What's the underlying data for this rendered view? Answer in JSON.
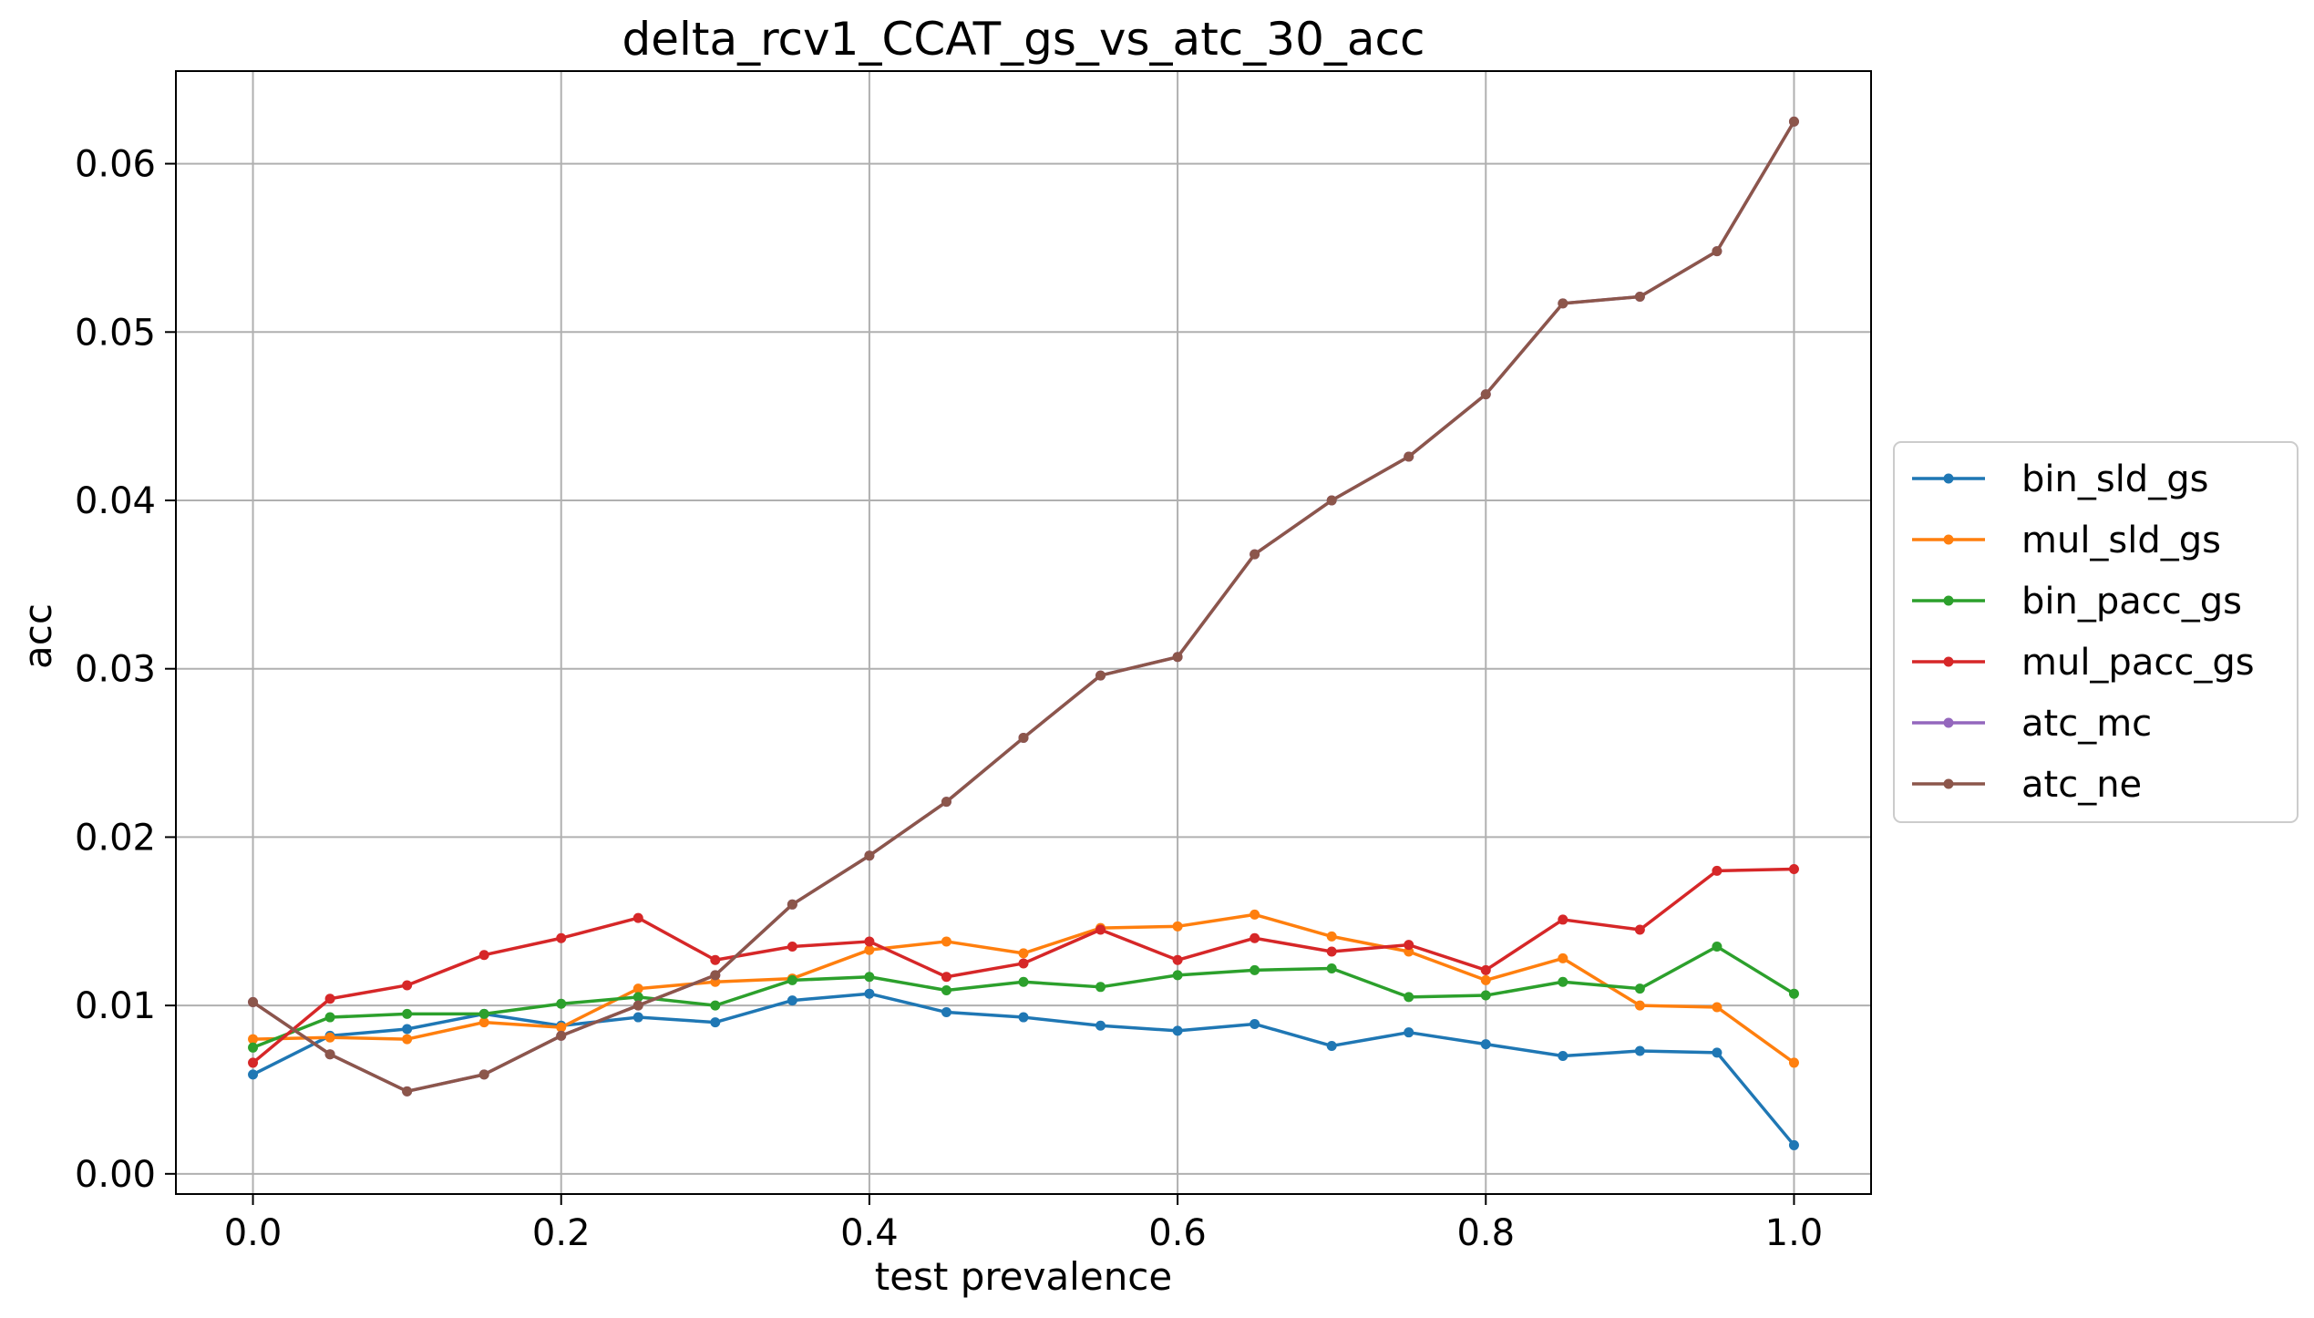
{
  "chart_data": {
    "type": "line",
    "title": "delta_rcv1_CCAT_gs_vs_atc_30_acc",
    "xlabel": "test prevalence",
    "ylabel": "acc",
    "xlim": [
      -0.05,
      1.05
    ],
    "ylim": [
      -0.0012,
      0.0655
    ],
    "grid": true,
    "legend_position": "right",
    "x_ticks": [
      {
        "value": 0.0,
        "label": "0.0"
      },
      {
        "value": 0.2,
        "label": "0.2"
      },
      {
        "value": 0.4,
        "label": "0.4"
      },
      {
        "value": 0.6,
        "label": "0.6"
      },
      {
        "value": 0.8,
        "label": "0.8"
      },
      {
        "value": 1.0,
        "label": "1.0"
      }
    ],
    "y_ticks": [
      {
        "value": 0.0,
        "label": "0.00"
      },
      {
        "value": 0.01,
        "label": "0.01"
      },
      {
        "value": 0.02,
        "label": "0.02"
      },
      {
        "value": 0.03,
        "label": "0.03"
      },
      {
        "value": 0.04,
        "label": "0.04"
      },
      {
        "value": 0.05,
        "label": "0.05"
      },
      {
        "value": 0.06,
        "label": "0.06"
      }
    ],
    "x": [
      0.0,
      0.05,
      0.1,
      0.15,
      0.2,
      0.25,
      0.3,
      0.35,
      0.4,
      0.45,
      0.5,
      0.55,
      0.6,
      0.65,
      0.7,
      0.75,
      0.8,
      0.85,
      0.9,
      0.95,
      1.0
    ],
    "series": [
      {
        "name": "bin_sld_gs",
        "color": "#1f77b4",
        "values": [
          0.0059,
          0.0082,
          0.0086,
          0.0095,
          0.0088,
          0.0093,
          0.009,
          0.0103,
          0.0107,
          0.0096,
          0.0093,
          0.0088,
          0.0085,
          0.0089,
          0.0076,
          0.0084,
          0.0077,
          0.007,
          0.0073,
          0.0072,
          0.0017
        ]
      },
      {
        "name": "mul_sld_gs",
        "color": "#ff7f0e",
        "values": [
          0.008,
          0.0081,
          0.008,
          0.009,
          0.0087,
          0.011,
          0.0114,
          0.0116,
          0.0133,
          0.0138,
          0.0131,
          0.0146,
          0.0147,
          0.0154,
          0.0141,
          0.0132,
          0.0115,
          0.0128,
          0.01,
          0.0099,
          0.0066
        ]
      },
      {
        "name": "bin_pacc_gs",
        "color": "#2ca02c",
        "values": [
          0.0075,
          0.0093,
          0.0095,
          0.0095,
          0.0101,
          0.0105,
          0.01,
          0.0115,
          0.0117,
          0.0109,
          0.0114,
          0.0111,
          0.0118,
          0.0121,
          0.0122,
          0.0105,
          0.0106,
          0.0114,
          0.011,
          0.0135,
          0.0107
        ]
      },
      {
        "name": "mul_pacc_gs",
        "color": "#d62728",
        "values": [
          0.0066,
          0.0104,
          0.0112,
          0.013,
          0.014,
          0.0152,
          0.0127,
          0.0135,
          0.0138,
          0.0117,
          0.0125,
          0.0145,
          0.0127,
          0.014,
          0.0132,
          0.0136,
          0.0121,
          0.0151,
          0.0145,
          0.018,
          0.0181
        ]
      },
      {
        "name": "atc_mc",
        "color": "#9467bd",
        "values": [
          0.0102,
          0.0071,
          0.0049,
          0.0059,
          0.0082,
          0.01,
          0.0118,
          0.016,
          0.0189,
          0.0221,
          0.0259,
          0.0296,
          0.0307,
          0.0368,
          0.04,
          0.0426,
          0.0463,
          0.0517,
          0.0521,
          0.0548,
          0.0625
        ]
      },
      {
        "name": "atc_ne",
        "color": "#8c564b",
        "values": [
          0.0102,
          0.0071,
          0.0049,
          0.0059,
          0.0082,
          0.01,
          0.0118,
          0.016,
          0.0189,
          0.0221,
          0.0259,
          0.0296,
          0.0307,
          0.0368,
          0.04,
          0.0426,
          0.0463,
          0.0517,
          0.0521,
          0.0548,
          0.0625
        ]
      }
    ]
  }
}
